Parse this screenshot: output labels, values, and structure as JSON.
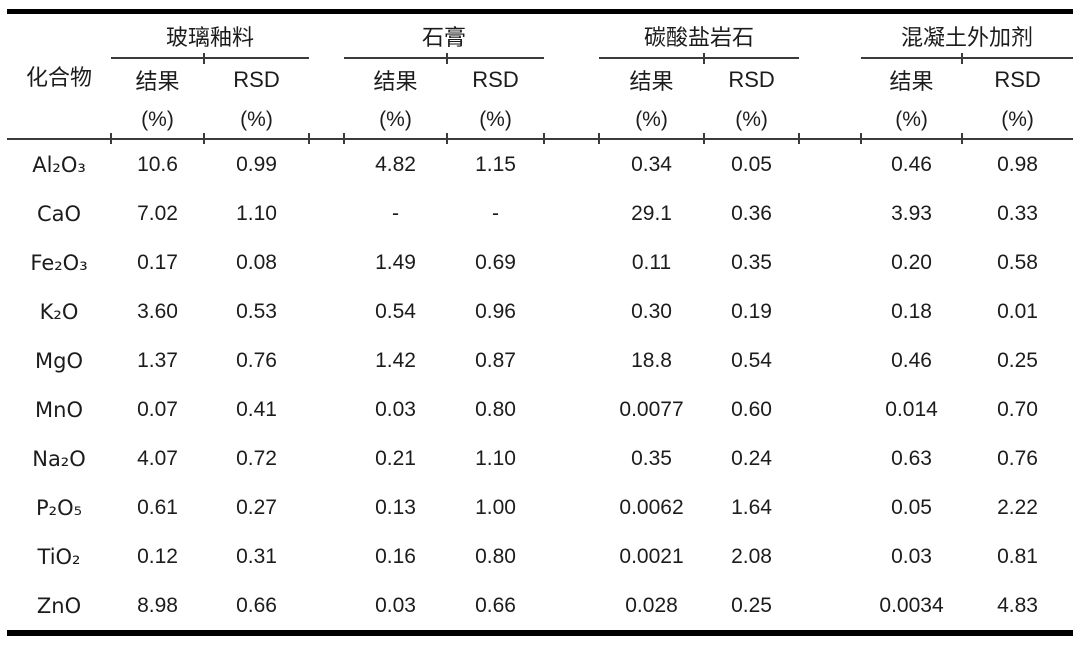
{
  "colors": {
    "text": "#1c1c1c",
    "rule_thick": "#000000",
    "rule_thin": "#3b3b3b",
    "background": "#ffffff"
  },
  "table": {
    "compound_header": "化合物",
    "groups": [
      "玻璃釉料",
      "石膏",
      "碳酸盐岩石",
      "混凝土外加剂"
    ],
    "sub_headers": {
      "result": "结果",
      "rsd": "RSD",
      "unit": "(%)"
    },
    "rows": [
      {
        "compound": "Al₂O₃",
        "values": [
          "10.6",
          "0.99",
          "4.82",
          "1.15",
          "0.34",
          "0.05",
          "0.46",
          "0.98"
        ]
      },
      {
        "compound": "CaO",
        "values": [
          "7.02",
          "1.10",
          "-",
          "-",
          "29.1",
          "0.36",
          "3.93",
          "0.33"
        ]
      },
      {
        "compound": "Fe₂O₃",
        "values": [
          "0.17",
          "0.08",
          "1.49",
          "0.69",
          "0.11",
          "0.35",
          "0.20",
          "0.58"
        ]
      },
      {
        "compound": "K₂O",
        "values": [
          "3.60",
          "0.53",
          "0.54",
          "0.96",
          "0.30",
          "0.19",
          "0.18",
          "0.01"
        ]
      },
      {
        "compound": "MgO",
        "values": [
          "1.37",
          "0.76",
          "1.42",
          "0.87",
          "18.8",
          "0.54",
          "0.46",
          "0.25"
        ]
      },
      {
        "compound": "MnO",
        "values": [
          "0.07",
          "0.41",
          "0.03",
          "0.80",
          "0.0077",
          "0.60",
          "0.014",
          "0.70"
        ]
      },
      {
        "compound": "Na₂O",
        "values": [
          "4.07",
          "0.72",
          "0.21",
          "1.10",
          "0.35",
          "0.24",
          "0.63",
          "0.76"
        ]
      },
      {
        "compound": "P₂O₅",
        "values": [
          "0.61",
          "0.27",
          "0.13",
          "1.00",
          "0.0062",
          "1.64",
          "0.05",
          "2.22"
        ]
      },
      {
        "compound": "TiO₂",
        "values": [
          "0.12",
          "0.31",
          "0.16",
          "0.80",
          "0.0021",
          "2.08",
          "0.03",
          "0.81"
        ]
      },
      {
        "compound": "ZnO",
        "values": [
          "8.98",
          "0.66",
          "0.03",
          "0.66",
          "0.028",
          "0.25",
          "0.0034",
          "4.83"
        ]
      }
    ]
  }
}
